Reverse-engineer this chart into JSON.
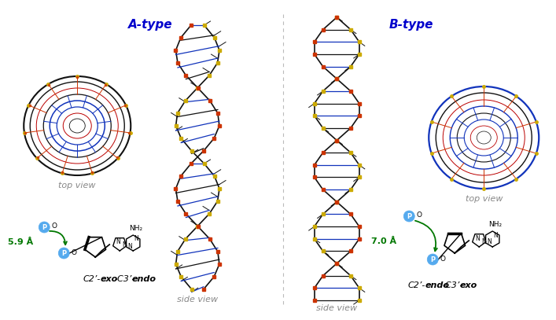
{
  "title_a": "A-type",
  "title_b": "B-type",
  "title_color": "#0000cc",
  "title_fontsize": 11,
  "label_top_view": "top view",
  "label_side_view": "side view",
  "label_color": "#888888",
  "label_conf_a_parts": [
    "C2’-",
    "exo",
    "-C3’-",
    "endo"
  ],
  "label_conf_b_parts": [
    "C2’-",
    "endo",
    "-C3’-",
    "exo"
  ],
  "dist_a": "5.9 Å",
  "dist_b": "7.0 Å",
  "dist_color": "#007700",
  "p_circle_color": "#55aaee",
  "p_text_color": "#ffffff",
  "bg_color": "#ffffff",
  "dashed_line_color": "#bbbbbb",
  "conf_fontsize": 8,
  "dist_fontsize": 8,
  "label_fontsize": 8,
  "fig_width": 6.74,
  "fig_height": 3.87
}
